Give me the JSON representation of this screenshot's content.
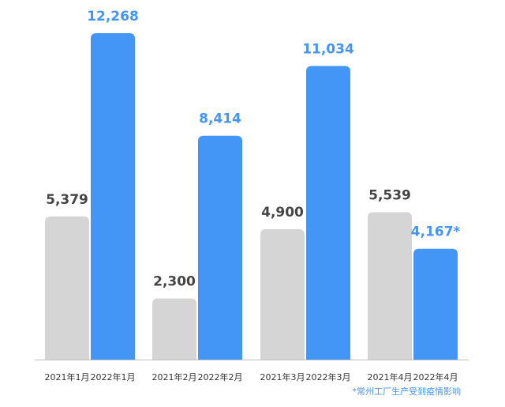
{
  "chart_data": {
    "type": "bar",
    "colors": {
      "gray_bar": "#d5d5d5",
      "blue_bar": "#4396f5",
      "gray_label": "#454545",
      "blue_label": "#4396f5",
      "axis": "#bfbfbf",
      "footnote": "#4396f5"
    },
    "bars": [
      {
        "label": "2021年1月",
        "value": 5379,
        "value_label": "5,379",
        "color": "gray",
        "group": 0
      },
      {
        "label": "2022年1月",
        "value": 12268,
        "value_label": "12,268",
        "color": "blue",
        "group": 0
      },
      {
        "label": "2021年2月",
        "value": 2300,
        "value_label": "2,300",
        "color": "gray",
        "group": 1
      },
      {
        "label": "2022年2月",
        "value": 8414,
        "value_label": "8,414",
        "color": "blue",
        "group": 1
      },
      {
        "label": "2021年3月",
        "value": 4900,
        "value_label": "4,900",
        "color": "gray",
        "group": 2
      },
      {
        "label": "2022年3月",
        "value": 11034,
        "value_label": "11,034",
        "color": "blue",
        "group": 2
      },
      {
        "label": "2021年4月",
        "value": 5539,
        "value_label": "5,539",
        "color": "gray",
        "group": 3
      },
      {
        "label": "2022年4月",
        "value": 4167,
        "value_label": "4,167*",
        "color": "blue",
        "group": 3
      }
    ],
    "ylim": [
      0,
      12268
    ],
    "grid": false,
    "footnote": "*常州工厂生产受到疫情影响"
  }
}
